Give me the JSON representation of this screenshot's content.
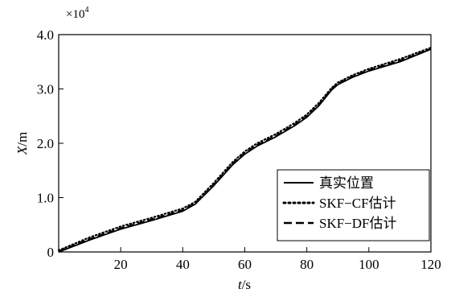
{
  "chart_data": {
    "type": "line",
    "title": "",
    "xlabel": {
      "var": "t",
      "unit": "/s"
    },
    "ylabel": {
      "var": "X",
      "unit": "/m"
    },
    "y_multiplier": {
      "base": "×10",
      "exp": "4"
    },
    "xlim": [
      0,
      120
    ],
    "ylim": [
      0,
      4.0
    ],
    "x_ticks": [
      20,
      40,
      60,
      80,
      100,
      120
    ],
    "x_tick_labels": [
      "20",
      "40",
      "60",
      "80",
      "100",
      "120"
    ],
    "y_ticks": [
      0,
      1.0,
      2.0,
      3.0,
      4.0
    ],
    "y_tick_labels": [
      "0",
      "1.0",
      "2.0",
      "3.0",
      "4.0"
    ],
    "grid": false,
    "legend_position": "bottom-right",
    "series": [
      {
        "name": "真实位置",
        "style": "solid",
        "x": [
          0,
          10,
          20,
          30,
          40,
          44,
          50,
          56,
          60,
          64,
          70,
          76,
          80,
          84,
          88,
          90,
          95,
          100,
          110,
          120
        ],
        "y": [
          0.0,
          0.22,
          0.42,
          0.58,
          0.75,
          0.88,
          1.22,
          1.6,
          1.8,
          1.95,
          2.12,
          2.32,
          2.48,
          2.7,
          2.98,
          3.08,
          3.22,
          3.33,
          3.5,
          3.73
        ]
      },
      {
        "name": "SKF−CF估计",
        "style": "dotted",
        "x": [
          0,
          10,
          20,
          30,
          40,
          44,
          50,
          56,
          60,
          64,
          70,
          76,
          80,
          84,
          88,
          90,
          95,
          100,
          110,
          120
        ],
        "y": [
          0.03,
          0.27,
          0.47,
          0.63,
          0.8,
          0.92,
          1.27,
          1.65,
          1.85,
          2.0,
          2.17,
          2.37,
          2.53,
          2.75,
          3.02,
          3.12,
          3.26,
          3.37,
          3.55,
          3.76
        ]
      },
      {
        "name": "SKF−DF估计",
        "style": "dashed",
        "x": [
          0,
          10,
          20,
          30,
          40,
          44,
          50,
          56,
          60,
          64,
          70,
          76,
          80,
          84,
          88,
          90,
          95,
          100,
          110,
          120
        ],
        "y": [
          0.01,
          0.24,
          0.44,
          0.6,
          0.77,
          0.9,
          1.24,
          1.62,
          1.82,
          1.97,
          2.14,
          2.34,
          2.5,
          2.72,
          3.0,
          3.1,
          3.24,
          3.35,
          3.52,
          3.74
        ]
      }
    ]
  }
}
